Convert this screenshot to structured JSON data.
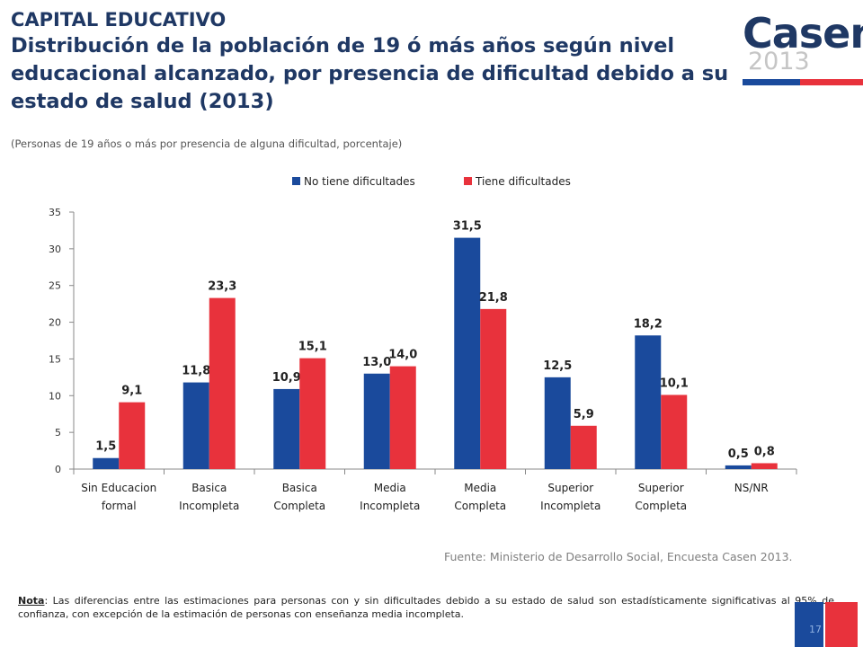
{
  "header": {
    "title_line1": "CAPITAL EDUCATIVO",
    "title_line2": "Distribución de la población de 19 ó más años según nivel educacional alcanzado, por presencia de dificultad debido a su estado de salud (2013)",
    "subtitle": "(Personas de 19 años o más por presencia de alguna dificultad, porcentaje)"
  },
  "logo": {
    "word": "Casen",
    "year": "2013"
  },
  "colors": {
    "title": "#1f3864",
    "series_no": "#1a4a9c",
    "series_si": "#e8323c"
  },
  "chart_data": {
    "type": "bar",
    "categories": [
      [
        "Sin Educacion",
        "formal"
      ],
      [
        "Basica",
        "Incompleta"
      ],
      [
        "Basica",
        "Completa"
      ],
      [
        "Media",
        "Incompleta"
      ],
      [
        "Media",
        "Completa"
      ],
      [
        "Superior",
        "Incompleta"
      ],
      [
        "Superior",
        "Completa"
      ],
      [
        "NS/NR"
      ]
    ],
    "series": [
      {
        "name": "No tiene dificultades",
        "values": [
          1.5,
          11.8,
          10.9,
          13.0,
          31.5,
          12.5,
          18.2,
          0.5
        ],
        "labels": [
          "1,5",
          "11,8",
          "10,9",
          "13,0",
          "31,5",
          "12,5",
          "18,2",
          "0,5"
        ],
        "color": "#1a4a9c"
      },
      {
        "name": "Tiene dificultades",
        "values": [
          9.1,
          23.3,
          15.1,
          14.0,
          21.8,
          5.9,
          10.1,
          0.8
        ],
        "labels": [
          "9,1",
          "23,3",
          "15,1",
          "14,0",
          "21,8",
          "5,9",
          "10,1",
          "0,8"
        ],
        "color": "#e8323c"
      }
    ],
    "ylim": [
      0,
      35
    ],
    "yticks": [
      "0",
      "5",
      "10",
      "15",
      "20",
      "25",
      "30",
      "35"
    ],
    "legend": "top-center",
    "grid": false
  },
  "footer": {
    "source": "Fuente: Ministerio de Desarrollo Social, Encuesta Casen 2013.",
    "note_label": "Nota",
    "note_text": ": Las diferencias entre las estimaciones para personas con y sin dificultades debido a su estado de salud son estadísticamente significativas al 95% de confianza, con excepción de la estimación de personas con enseñanza media incompleta.",
    "page_number": "17"
  }
}
